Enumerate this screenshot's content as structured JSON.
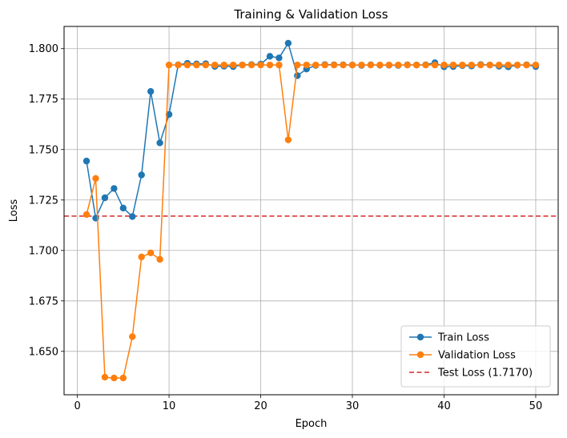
{
  "chart_data": {
    "type": "line",
    "title": "Training & Validation Loss",
    "xlabel": "Epoch",
    "ylabel": "Loss",
    "xlim": [
      -1.45,
      52.45
    ],
    "ylim": [
      1.6285,
      1.811
    ],
    "xticks": [
      0,
      10,
      20,
      30,
      40,
      50
    ],
    "yticks": [
      1.65,
      1.675,
      1.7,
      1.725,
      1.75,
      1.775,
      1.8
    ],
    "ytick_labels": [
      "1.650",
      "1.675",
      "1.700",
      "1.725",
      "1.750",
      "1.775",
      "1.800"
    ],
    "grid": true,
    "legend_position": "lower-right",
    "series": [
      {
        "name": "Train Loss",
        "color": "#1f77b4",
        "marker": "circle",
        "x": [
          1,
          2,
          3,
          4,
          5,
          6,
          7,
          8,
          9,
          10,
          11,
          12,
          13,
          14,
          15,
          16,
          17,
          18,
          19,
          20,
          21,
          22,
          23,
          24,
          25,
          26,
          27,
          28,
          29,
          30,
          31,
          32,
          33,
          34,
          35,
          36,
          37,
          38,
          39,
          40,
          41,
          42,
          43,
          44,
          45,
          46,
          47,
          48,
          49,
          50
        ],
        "y": [
          1.7443,
          1.716,
          1.7261,
          1.7307,
          1.721,
          1.7168,
          1.7374,
          1.7788,
          1.7533,
          1.7674,
          1.792,
          1.7927,
          1.7924,
          1.7925,
          1.7912,
          1.7913,
          1.7911,
          1.7919,
          1.7921,
          1.7923,
          1.7962,
          1.7954,
          1.8027,
          1.7866,
          1.7899,
          1.7917,
          1.7921,
          1.792,
          1.792,
          1.7919,
          1.7917,
          1.792,
          1.7918,
          1.7918,
          1.7917,
          1.792,
          1.7919,
          1.792,
          1.793,
          1.791,
          1.7911,
          1.7916,
          1.7914,
          1.7921,
          1.7919,
          1.7913,
          1.791,
          1.7918,
          1.792,
          1.7911
        ]
      },
      {
        "name": "Validation Loss",
        "color": "#ff7f0e",
        "marker": "circle",
        "x": [
          1,
          2,
          3,
          4,
          5,
          6,
          7,
          8,
          9,
          10,
          11,
          12,
          13,
          14,
          15,
          16,
          17,
          18,
          19,
          20,
          21,
          22,
          23,
          24,
          25,
          26,
          27,
          28,
          29,
          30,
          31,
          32,
          33,
          34,
          35,
          36,
          37,
          38,
          39,
          40,
          41,
          42,
          43,
          44,
          45,
          46,
          47,
          48,
          49,
          50
        ],
        "y": [
          1.7178,
          1.7357,
          1.6372,
          1.6368,
          1.6368,
          1.6573,
          1.6968,
          1.6988,
          1.6956,
          1.7919,
          1.7919,
          1.7919,
          1.7919,
          1.7919,
          1.7919,
          1.7919,
          1.7919,
          1.7919,
          1.7919,
          1.7919,
          1.7919,
          1.7919,
          1.7548,
          1.7919,
          1.7919,
          1.7919,
          1.7919,
          1.7919,
          1.7919,
          1.7919,
          1.7919,
          1.7919,
          1.7919,
          1.7919,
          1.7919,
          1.7919,
          1.7919,
          1.7919,
          1.7919,
          1.7919,
          1.7919,
          1.7919,
          1.7919,
          1.7919,
          1.7919,
          1.7919,
          1.7919,
          1.7919,
          1.7919,
          1.7919
        ]
      }
    ],
    "reference_line": {
      "name": "Test Loss (1.7170)",
      "y": 1.717,
      "color": "#d62728",
      "style": "dashed"
    }
  }
}
